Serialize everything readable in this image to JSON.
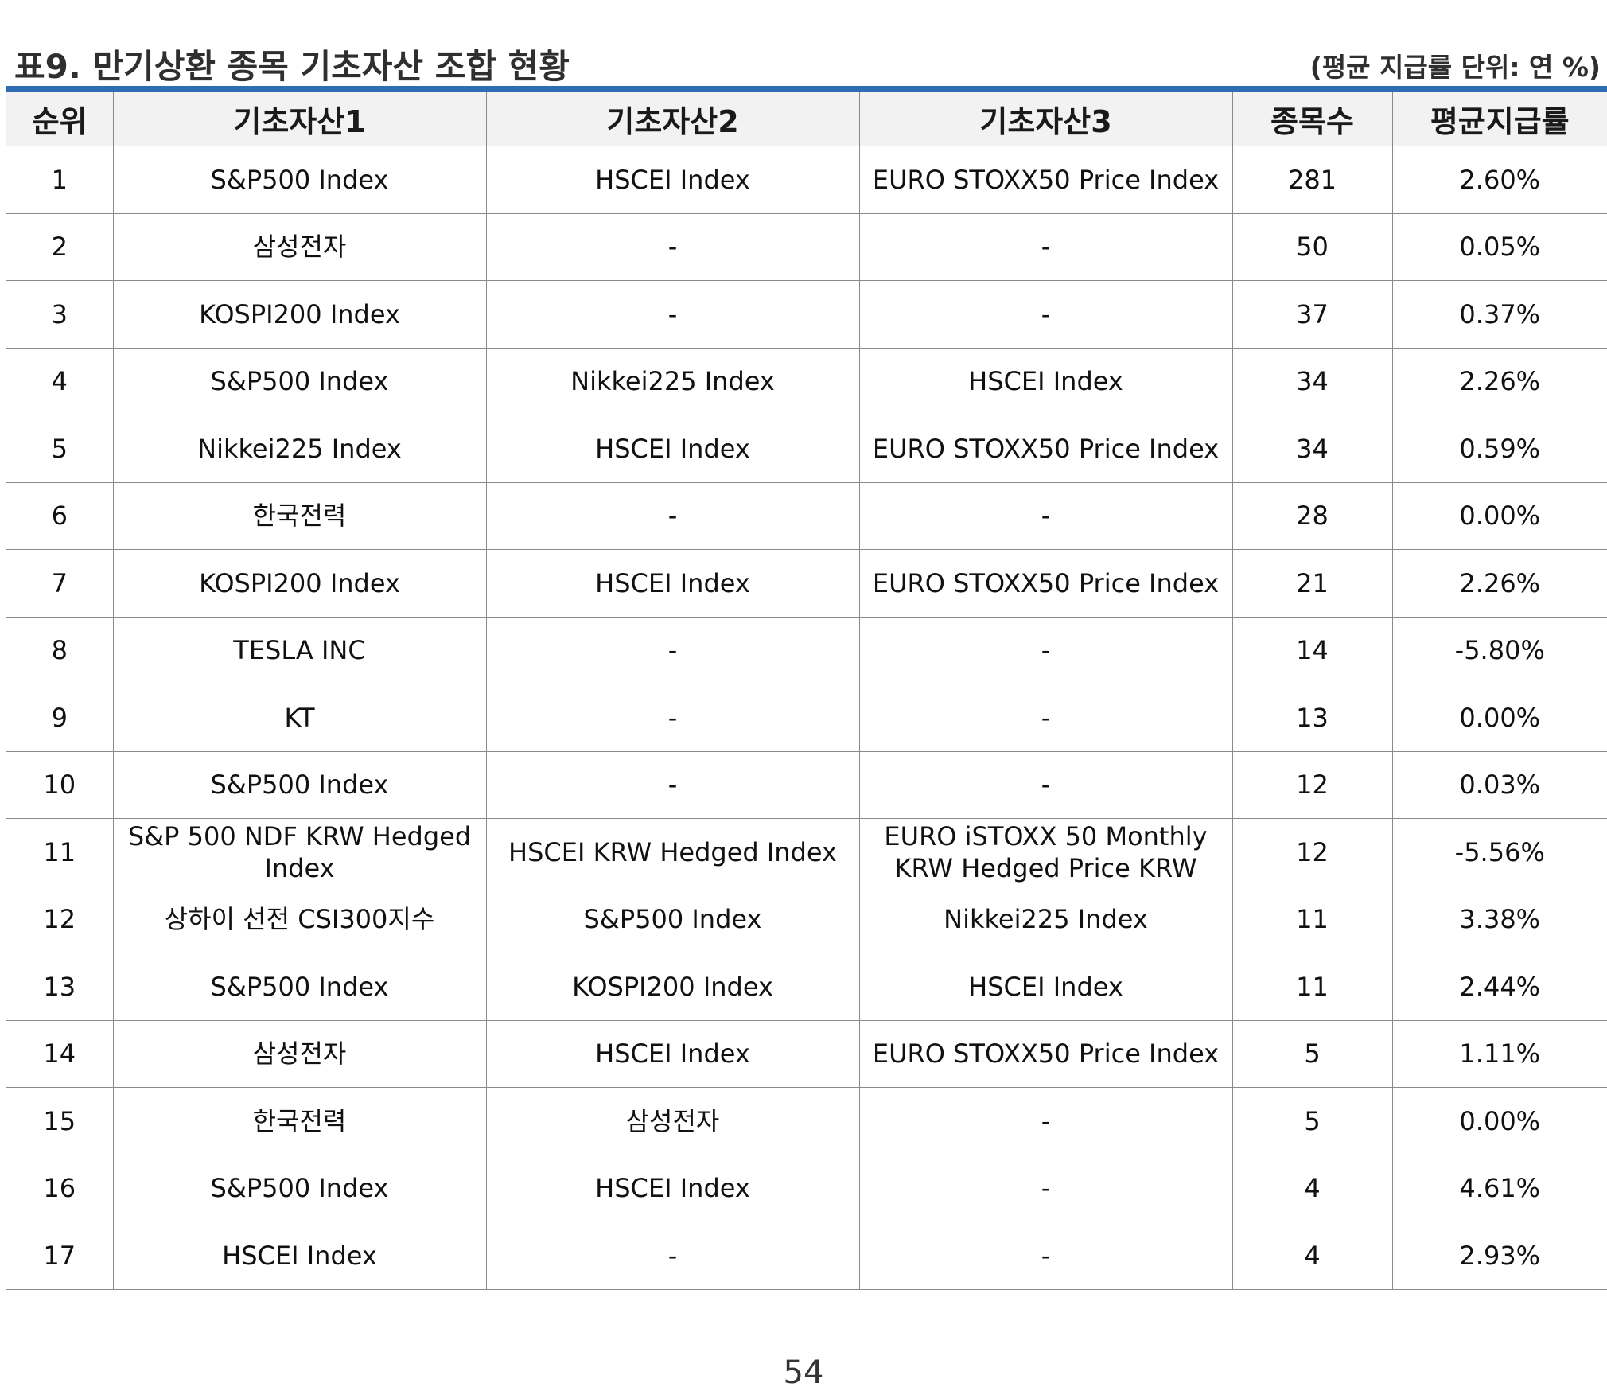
{
  "document": {
    "title": "표9. 만기상환 종목 기초자산 조합 현황",
    "unit_note": "(평균 지급률 단위: 연 %)",
    "page_number": "54"
  },
  "table": {
    "headers": [
      "순위",
      "기초자산1",
      "기초자산2",
      "기초자산3",
      "종목수",
      "평균지급률"
    ],
    "rows": [
      [
        "1",
        "S&P500 Index",
        "HSCEI Index",
        "EURO STOXX50 Price Index",
        "281",
        "2.60%"
      ],
      [
        "2",
        "삼성전자",
        "-",
        "-",
        "50",
        "0.05%"
      ],
      [
        "3",
        "KOSPI200 Index",
        "-",
        "-",
        "37",
        "0.37%"
      ],
      [
        "4",
        "S&P500 Index",
        "Nikkei225 Index",
        "HSCEI Index",
        "34",
        "2.26%"
      ],
      [
        "5",
        "Nikkei225 Index",
        "HSCEI Index",
        "EURO STOXX50 Price Index",
        "34",
        "0.59%"
      ],
      [
        "6",
        "한국전력",
        "-",
        "-",
        "28",
        "0.00%"
      ],
      [
        "7",
        "KOSPI200 Index",
        "HSCEI Index",
        "EURO STOXX50 Price Index",
        "21",
        "2.26%"
      ],
      [
        "8",
        "TESLA INC",
        "-",
        "-",
        "14",
        "-5.80%"
      ],
      [
        "9",
        "KT",
        "-",
        "-",
        "13",
        "0.00%"
      ],
      [
        "10",
        "S&P500 Index",
        "-",
        "-",
        "12",
        "0.03%"
      ],
      [
        "11",
        "S&P 500 NDF KRW Hedged Index",
        "HSCEI KRW Hedged Index",
        "EURO iSTOXX 50 Monthly KRW Hedged Price KRW",
        "12",
        "-5.56%"
      ],
      [
        "12",
        "상하이 선전 CSI300지수",
        "S&P500 Index",
        "Nikkei225 Index",
        "11",
        "3.38%"
      ],
      [
        "13",
        "S&P500 Index",
        "KOSPI200 Index",
        "HSCEI Index",
        "11",
        "2.44%"
      ],
      [
        "14",
        "삼성전자",
        "HSCEI Index",
        "EURO STOXX50 Price Index",
        "5",
        "1.11%"
      ],
      [
        "15",
        "한국전력",
        "삼성전자",
        "-",
        "5",
        "0.00%"
      ],
      [
        "16",
        "S&P500 Index",
        "HSCEI Index",
        "-",
        "4",
        "4.61%"
      ],
      [
        "17",
        "HSCEI Index",
        "-",
        "-",
        "4",
        "2.93%"
      ]
    ]
  }
}
